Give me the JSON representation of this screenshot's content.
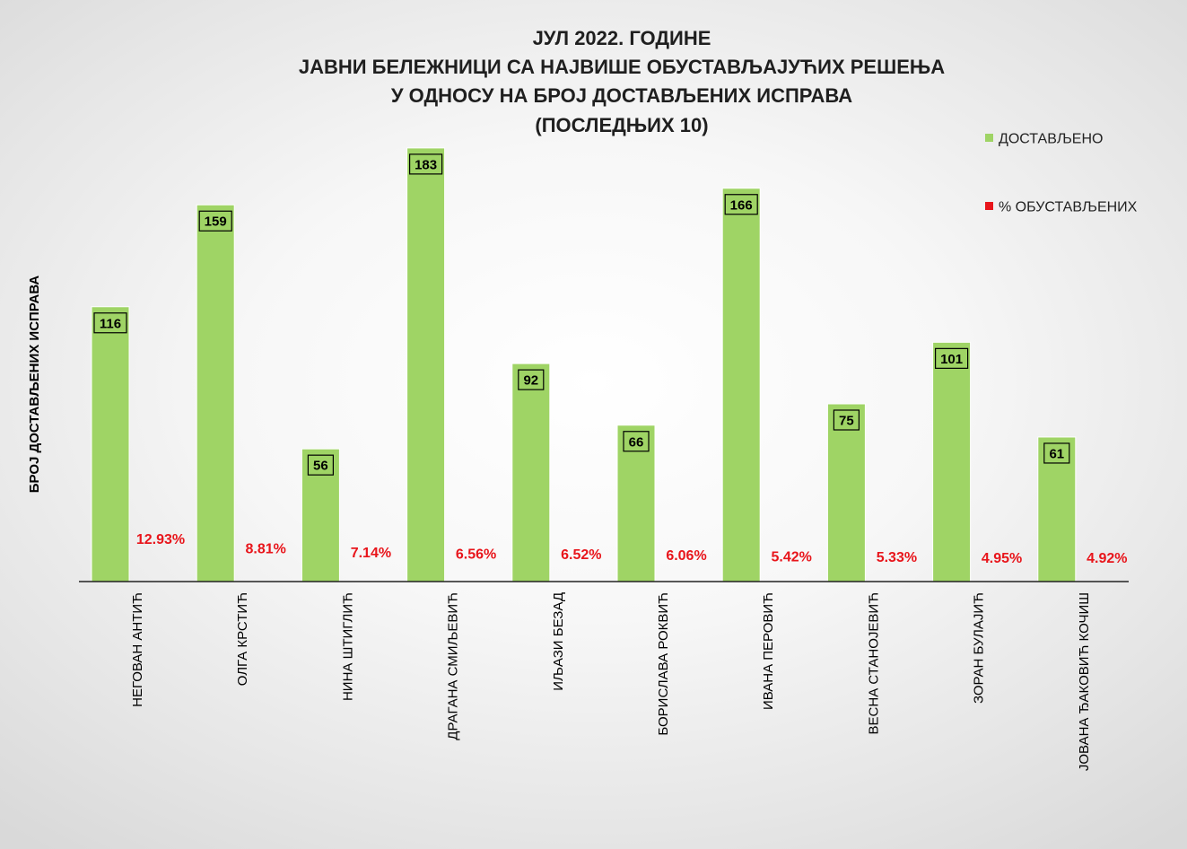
{
  "chart_data": {
    "type": "bar",
    "title_lines": [
      "ЈУЛ 2022. ГОДИНЕ",
      "ЈАВНИ БЕЛЕЖНИЦИ СА НАЈВИШЕ ОБУСТАВЉАЈУЋИХ РЕШЕЊА",
      "У ОДНОСУ НА БРОЈ ДОСТАВЉЕНИХ ИСПРАВА",
      "(ПОСЛЕДЊИХ 10)"
    ],
    "ylabel": "БРОЈ ДОСТАВЉЕНИХ ИСПРАВА",
    "xlabel": "",
    "ylim": [
      0,
      200
    ],
    "categories": [
      "НЕГОВАН АНТИЋ",
      "ОЛГА КРСТИЋ",
      "НИНА ШТИГЛИЋ",
      "ДРАГАНА СМИЉЕВИЋ",
      "ИЉАЗИ БЕЗАД",
      "БОРИСЛАВА РОКВИЋ",
      "ИВАНА ПЕРОВИЋ",
      "ВЕСНА СТАНОЈЕВИЋ",
      "ЗОРАН БУЛАЈИЋ",
      "ЈОВАНА ЂАКОВИЋ КОЧИШ"
    ],
    "series": [
      {
        "name": "ДОСТАВЉЕНО",
        "color": "#9fd465",
        "values": [
          116,
          159,
          56,
          183,
          92,
          66,
          166,
          75,
          101,
          61
        ],
        "labels": [
          "116",
          "159",
          "56",
          "183",
          "92",
          "66",
          "166",
          "75",
          "101",
          "61"
        ]
      },
      {
        "name": "% ОБУСТАВЉЕНИХ",
        "color": "#e8151b",
        "values": [
          12.93,
          8.81,
          7.14,
          6.56,
          6.52,
          6.06,
          5.42,
          5.33,
          4.95,
          4.92
        ],
        "labels": [
          "12.93%",
          "8.81%",
          "7.14%",
          "6.56%",
          "6.52%",
          "6.06%",
          "5.42%",
          "5.33%",
          "4.95%",
          "4.92%"
        ]
      }
    ],
    "legend_position": "right",
    "grid": false
  }
}
